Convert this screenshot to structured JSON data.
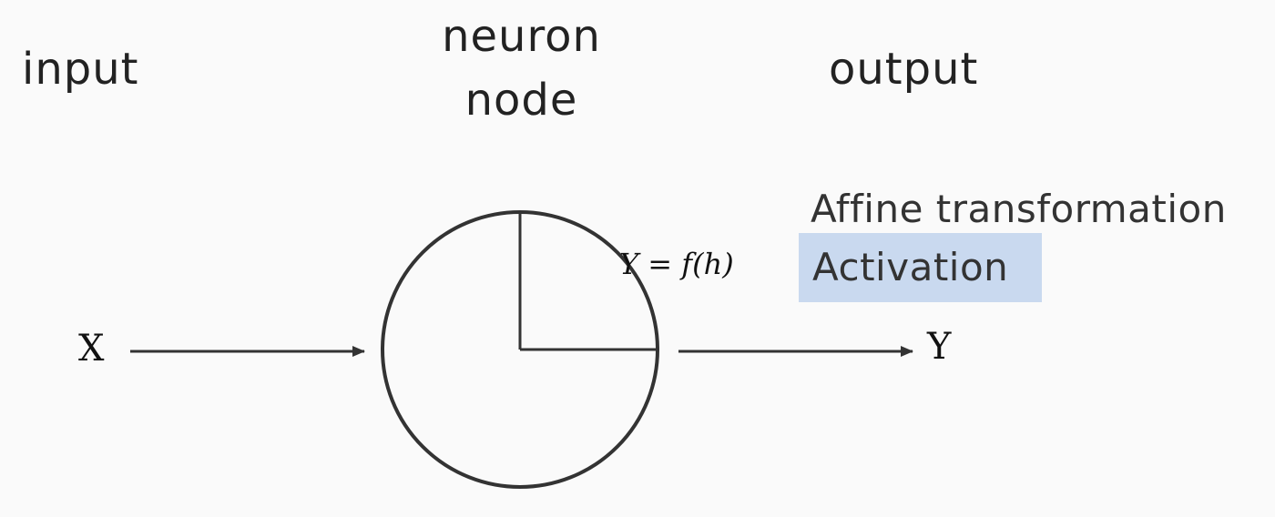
{
  "labels": {
    "input": "input",
    "neuron": "neuron",
    "node": "node",
    "output": "output"
  },
  "variables": {
    "x": "X",
    "y": "Y"
  },
  "formula": "Y = f(h)",
  "steps": {
    "affine": "Affine transformation",
    "activation": "Activation"
  },
  "colors": {
    "background": "#fafafa",
    "stroke": "#333333",
    "highlight": "#c9d9ef"
  }
}
